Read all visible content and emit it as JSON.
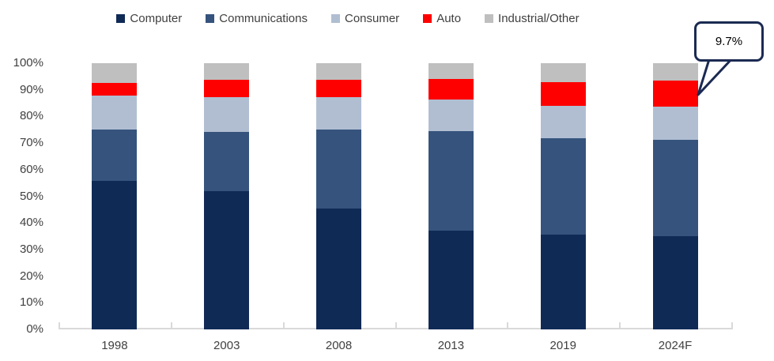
{
  "chart_data": {
    "type": "bar",
    "subtype": "stacked-100",
    "unit": "%",
    "categories": [
      "1998",
      "2003",
      "2008",
      "2013",
      "2019",
      "2024F"
    ],
    "series": [
      {
        "name": "Computer",
        "color": "#102a56",
        "values": [
          55.9,
          51.8,
          45.3,
          37.0,
          35.7,
          35.0
        ]
      },
      {
        "name": "Communications",
        "color": "#35537d",
        "values": [
          19.3,
          22.4,
          29.8,
          37.6,
          36.2,
          36.2
        ]
      },
      {
        "name": "Consumer",
        "color": "#b1bed2",
        "values": [
          12.7,
          13.0,
          12.1,
          11.8,
          12.2,
          12.6
        ]
      },
      {
        "name": "Auto",
        "color": "#ff0000",
        "values": [
          4.7,
          6.5,
          6.7,
          7.8,
          8.8,
          9.7
        ]
      },
      {
        "name": "Industrial/Other",
        "color": "#bfbfbf",
        "values": [
          7.4,
          6.3,
          6.1,
          5.8,
          7.1,
          6.5
        ]
      }
    ],
    "title": "",
    "xlabel": "",
    "ylabel": "",
    "ylim": [
      0,
      100
    ],
    "y_tick_labels": [
      "100%",
      "90%",
      "80%",
      "70%",
      "60%",
      "50%",
      "40%",
      "30%",
      "20%",
      "10%",
      "0%"
    ],
    "grid": false,
    "legend_position": "top",
    "annotations": [
      {
        "text": "9.7%",
        "target_series": "Auto",
        "target_category": "2024F"
      }
    ]
  },
  "colors": {
    "axis_line": "#d9d9d9",
    "axis_text": "#404040",
    "callout_border": "#1b2a52"
  }
}
